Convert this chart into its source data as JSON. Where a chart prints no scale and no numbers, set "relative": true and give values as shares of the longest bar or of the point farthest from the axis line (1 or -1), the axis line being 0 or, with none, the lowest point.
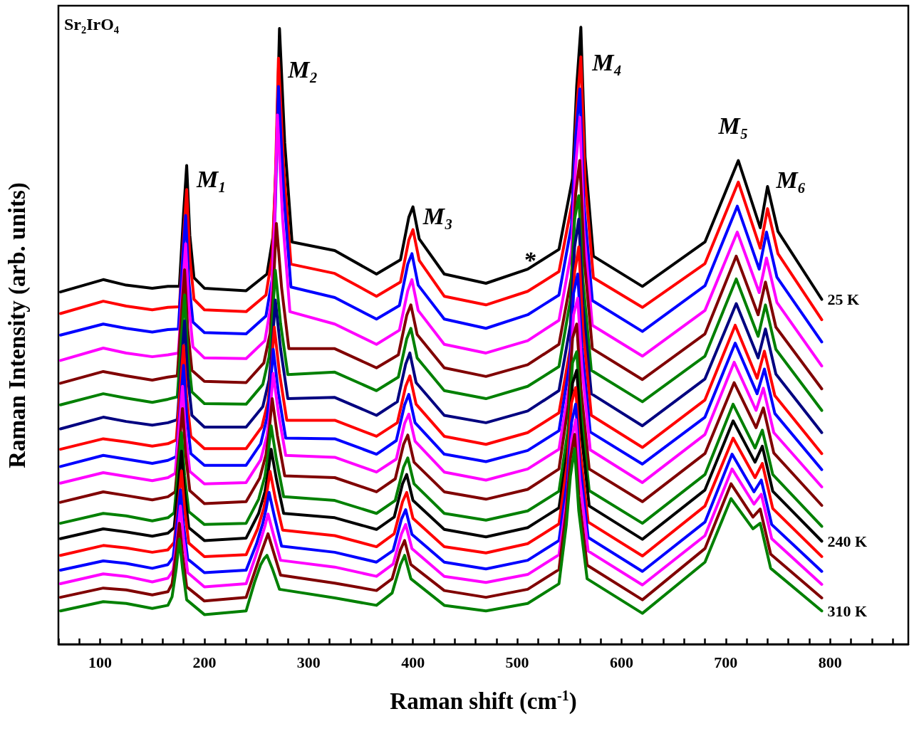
{
  "chart_data": {
    "type": "line",
    "relative": true,
    "marker": "none",
    "line_style": "solid",
    "grid": false,
    "xlabel": "Raman shift (cm$^{-1}$)",
    "ylabel": "Raman Intensity (arb. units)",
    "xlim": [
      60,
      875
    ],
    "xticks": [
      {
        "value": 60,
        "label": null
      },
      {
        "value": 80,
        "label": null
      },
      100,
      {
        "value": 120,
        "label": null
      },
      {
        "value": 140,
        "label": null
      },
      {
        "value": 160,
        "label": null
      },
      {
        "value": 180,
        "label": null
      },
      200,
      {
        "value": 220,
        "label": null
      },
      {
        "value": 240,
        "label": null
      },
      {
        "value": 260,
        "label": null
      },
      {
        "value": 280,
        "label": null
      },
      300,
      {
        "value": 320,
        "label": null
      },
      {
        "value": 340,
        "label": null
      },
      {
        "value": 360,
        "label": null
      },
      {
        "value": 380,
        "label": null
      },
      400,
      {
        "value": 420,
        "label": null
      },
      {
        "value": 440,
        "label": null
      },
      {
        "value": 460,
        "label": null
      },
      {
        "value": 480,
        "label": null
      },
      500,
      {
        "value": 520,
        "label": null
      },
      {
        "value": 540,
        "label": null
      },
      {
        "value": 560,
        "label": null
      },
      {
        "value": 580,
        "label": null
      },
      600,
      {
        "value": 620,
        "label": null
      },
      {
        "value": 640,
        "label": null
      },
      {
        "value": 660,
        "label": null
      },
      {
        "value": 680,
        "label": null
      },
      700,
      {
        "value": 720,
        "label": null
      },
      {
        "value": 740,
        "label": null
      },
      {
        "value": 760,
        "label": null
      },
      {
        "value": 780,
        "label": null
      },
      800,
      {
        "value": 820,
        "label": null
      },
      {
        "value": 840,
        "label": null
      },
      {
        "value": 860,
        "label": null
      }
    ],
    "annotations": [
      "Sr₂IrO₄",
      {
        "text": "M₁",
        "x": 183,
        "y": 0.776
      },
      {
        "text": "M₂",
        "x": 272,
        "y": 0.998
      },
      {
        "text": "M₃",
        "x": 400,
        "y": 0.709
      },
      {
        "text": "M₄",
        "x": 561,
        "y": 1.0
      },
      {
        "text": "M₅",
        "x": 712,
        "y": 0.784
      },
      {
        "text": "M₆",
        "x": 740,
        "y": 0.742
      },
      {
        "text": "*",
        "x": 510,
        "y": 0.608
      }
    ],
    "series": [
      {
        "name": "25 K",
        "color": "#000000",
        "x": [
          62,
          103,
          125,
          150,
          165,
          176,
          180,
          183,
          186,
          190,
          200,
          240,
          260,
          266,
          269,
          272,
          277,
          284,
          325,
          365,
          388,
          396,
          400,
          406,
          430,
          470,
          510,
          540,
          553,
          557,
          561,
          565,
          573,
          620,
          680,
          712,
          733,
          740,
          750,
          792
        ],
        "values": [
          0.571,
          0.591,
          0.582,
          0.577,
          0.58,
          0.58,
          0.698,
          0.776,
          0.663,
          0.594,
          0.577,
          0.573,
          0.6,
          0.663,
          0.79,
          0.998,
          0.813,
          0.652,
          0.638,
          0.6,
          0.623,
          0.692,
          0.709,
          0.657,
          0.6,
          0.585,
          0.608,
          0.64,
          0.755,
          0.905,
          1.0,
          0.79,
          0.629,
          0.58,
          0.652,
          0.784,
          0.675,
          0.742,
          0.669,
          0.559
        ]
      },
      {
        "color": "#ff0000",
        "x": [
          62,
          103,
          125,
          150,
          165,
          176,
          180,
          183,
          186,
          190,
          200,
          240,
          259,
          265,
          268,
          271,
          276,
          283,
          325,
          365,
          388,
          396,
          400,
          406,
          430,
          470,
          510,
          540,
          553,
          557,
          561,
          565,
          573,
          620,
          680,
          712,
          733,
          740,
          750,
          792
        ],
        "values": [
          0.536,
          0.556,
          0.548,
          0.542,
          0.546,
          0.547,
          0.66,
          0.737,
          0.627,
          0.559,
          0.542,
          0.539,
          0.566,
          0.629,
          0.751,
          0.95,
          0.773,
          0.616,
          0.601,
          0.564,
          0.587,
          0.655,
          0.672,
          0.622,
          0.564,
          0.55,
          0.572,
          0.604,
          0.719,
          0.865,
          0.952,
          0.752,
          0.594,
          0.546,
          0.617,
          0.749,
          0.642,
          0.706,
          0.633,
          0.526
        ]
      },
      {
        "color": "#0000ff",
        "x": [
          62,
          103,
          125,
          150,
          165,
          175,
          179,
          182,
          185,
          189,
          200,
          240,
          259,
          265,
          268,
          271,
          276,
          283,
          325,
          365,
          387,
          395,
          399,
          405,
          430,
          470,
          510,
          540,
          552,
          556,
          560,
          564,
          572,
          620,
          680,
          711,
          732,
          739,
          749,
          792
        ],
        "values": [
          0.501,
          0.519,
          0.512,
          0.506,
          0.51,
          0.511,
          0.621,
          0.695,
          0.589,
          0.522,
          0.505,
          0.503,
          0.532,
          0.592,
          0.71,
          0.904,
          0.731,
          0.579,
          0.562,
          0.527,
          0.549,
          0.616,
          0.633,
          0.582,
          0.527,
          0.512,
          0.534,
          0.566,
          0.679,
          0.821,
          0.9,
          0.713,
          0.557,
          0.507,
          0.581,
          0.71,
          0.608,
          0.668,
          0.595,
          0.49
        ]
      },
      {
        "color": "#ff00ff",
        "x": [
          62,
          103,
          125,
          150,
          165,
          175,
          179,
          182,
          185,
          189,
          200,
          240,
          258,
          264,
          267,
          270,
          275,
          282,
          325,
          365,
          387,
          395,
          399,
          405,
          430,
          470,
          510,
          540,
          552,
          556,
          560,
          564,
          572,
          620,
          680,
          711,
          732,
          739,
          749,
          792
        ],
        "values": [
          0.46,
          0.48,
          0.472,
          0.466,
          0.469,
          0.472,
          0.577,
          0.649,
          0.549,
          0.482,
          0.464,
          0.463,
          0.492,
          0.552,
          0.669,
          0.858,
          0.689,
          0.539,
          0.519,
          0.486,
          0.509,
          0.573,
          0.591,
          0.541,
          0.486,
          0.472,
          0.492,
          0.525,
          0.637,
          0.775,
          0.854,
          0.669,
          0.517,
          0.467,
          0.541,
          0.668,
          0.57,
          0.626,
          0.554,
          0.451
        ]
      },
      {
        "color": "#800000",
        "x": [
          62,
          103,
          125,
          150,
          165,
          174,
          178,
          181,
          184,
          188,
          200,
          240,
          257,
          263,
          266,
          269,
          274,
          281,
          325,
          365,
          386,
          394,
          398,
          404,
          430,
          470,
          510,
          540,
          552,
          556,
          560,
          564,
          572,
          620,
          680,
          710,
          731,
          738,
          748,
          792
        ],
        "values": [
          0.423,
          0.442,
          0.435,
          0.428,
          0.433,
          0.435,
          0.536,
          0.607,
          0.51,
          0.444,
          0.426,
          0.424,
          0.456,
          0.504,
          0.573,
          0.682,
          0.578,
          0.479,
          0.479,
          0.448,
          0.469,
          0.533,
          0.55,
          0.502,
          0.448,
          0.434,
          0.453,
          0.486,
          0.596,
          0.73,
          0.784,
          0.629,
          0.479,
          0.429,
          0.503,
          0.629,
          0.534,
          0.587,
          0.514,
          0.414
        ]
      },
      {
        "color": "#008000",
        "x": [
          62,
          103,
          125,
          150,
          165,
          174,
          178,
          181,
          184,
          188,
          200,
          240,
          256,
          262,
          265,
          268,
          273,
          280,
          325,
          365,
          386,
          394,
          398,
          404,
          430,
          470,
          510,
          540,
          551,
          555,
          559,
          563,
          571,
          620,
          680,
          710,
          731,
          738,
          748,
          792
        ],
        "values": [
          0.388,
          0.406,
          0.399,
          0.392,
          0.397,
          0.401,
          0.497,
          0.566,
          0.473,
          0.409,
          0.39,
          0.389,
          0.421,
          0.466,
          0.521,
          0.606,
          0.52,
          0.437,
          0.441,
          0.411,
          0.433,
          0.495,
          0.512,
          0.464,
          0.411,
          0.398,
          0.418,
          0.45,
          0.558,
          0.689,
          0.727,
          0.589,
          0.444,
          0.393,
          0.467,
          0.592,
          0.499,
          0.55,
          0.478,
          0.379
        ]
      },
      {
        "color": "#000080",
        "x": [
          62,
          103,
          125,
          150,
          165,
          174,
          178,
          181,
          184,
          188,
          200,
          240,
          256,
          262,
          265,
          268,
          273,
          280,
          325,
          365,
          385,
          393,
          397,
          403,
          430,
          470,
          510,
          540,
          551,
          555,
          559,
          563,
          571,
          620,
          680,
          710,
          731,
          738,
          748,
          792
        ],
        "values": [
          0.349,
          0.368,
          0.361,
          0.355,
          0.359,
          0.364,
          0.457,
          0.524,
          0.434,
          0.371,
          0.352,
          0.352,
          0.385,
          0.428,
          0.48,
          0.558,
          0.479,
          0.398,
          0.4,
          0.371,
          0.393,
          0.454,
          0.472,
          0.424,
          0.371,
          0.359,
          0.378,
          0.411,
          0.518,
          0.644,
          0.689,
          0.549,
          0.406,
          0.354,
          0.43,
          0.552,
          0.464,
          0.511,
          0.438,
          0.343
        ]
      },
      {
        "color": "#ff0000",
        "x": [
          62,
          103,
          125,
          150,
          165,
          173,
          177,
          180,
          183,
          187,
          200,
          240,
          255,
          261,
          264,
          267,
          272,
          279,
          325,
          365,
          385,
          393,
          397,
          403,
          430,
          470,
          510,
          540,
          551,
          555,
          559,
          563,
          571,
          620,
          680,
          709,
          730,
          737,
          747,
          792
        ],
        "values": [
          0.316,
          0.333,
          0.328,
          0.321,
          0.325,
          0.331,
          0.419,
          0.484,
          0.399,
          0.337,
          0.317,
          0.317,
          0.352,
          0.393,
          0.442,
          0.514,
          0.439,
          0.363,
          0.363,
          0.337,
          0.359,
          0.418,
          0.435,
          0.389,
          0.337,
          0.324,
          0.343,
          0.375,
          0.481,
          0.603,
          0.644,
          0.511,
          0.371,
          0.319,
          0.396,
          0.517,
          0.431,
          0.475,
          0.403,
          0.309
        ]
      },
      {
        "color": "#0000ff",
        "x": [
          62,
          103,
          125,
          150,
          165,
          173,
          177,
          180,
          183,
          187,
          200,
          240,
          254,
          260,
          263,
          266,
          271,
          278,
          325,
          365,
          384,
          392,
          396,
          402,
          430,
          470,
          510,
          540,
          550,
          554,
          558,
          562,
          570,
          620,
          680,
          709,
          730,
          737,
          747,
          792
        ],
        "values": [
          0.288,
          0.306,
          0.3,
          0.293,
          0.298,
          0.304,
          0.389,
          0.452,
          0.37,
          0.309,
          0.29,
          0.29,
          0.325,
          0.367,
          0.411,
          0.478,
          0.407,
          0.334,
          0.333,
          0.308,
          0.33,
          0.388,
          0.405,
          0.359,
          0.308,
          0.296,
          0.314,
          0.346,
          0.451,
          0.569,
          0.6,
          0.481,
          0.344,
          0.292,
          0.368,
          0.488,
          0.406,
          0.446,
          0.374,
          0.283
        ]
      },
      {
        "color": "#ff00ff",
        "x": [
          62,
          103,
          125,
          150,
          165,
          172,
          176,
          179,
          182,
          186,
          200,
          240,
          254,
          260,
          263,
          266,
          271,
          278,
          325,
          365,
          384,
          392,
          396,
          402,
          430,
          470,
          510,
          540,
          550,
          554,
          558,
          562,
          570,
          620,
          680,
          708,
          729,
          736,
          746,
          792
        ],
        "values": [
          0.261,
          0.278,
          0.272,
          0.265,
          0.27,
          0.277,
          0.356,
          0.418,
          0.34,
          0.28,
          0.26,
          0.262,
          0.299,
          0.338,
          0.378,
          0.439,
          0.374,
          0.306,
          0.303,
          0.279,
          0.3,
          0.358,
          0.373,
          0.329,
          0.279,
          0.266,
          0.284,
          0.316,
          0.421,
          0.534,
          0.561,
          0.449,
          0.315,
          0.262,
          0.34,
          0.457,
          0.379,
          0.415,
          0.343,
          0.255
        ]
      },
      {
        "color": "#800000",
        "x": [
          62,
          103,
          125,
          150,
          165,
          172,
          176,
          179,
          182,
          186,
          200,
          240,
          253,
          259,
          262,
          265,
          270,
          277,
          325,
          365,
          383,
          391,
          395,
          401,
          430,
          470,
          510,
          540,
          549,
          553,
          557,
          561,
          569,
          620,
          680,
          708,
          729,
          736,
          746,
          792
        ],
        "values": [
          0.23,
          0.247,
          0.241,
          0.234,
          0.239,
          0.247,
          0.323,
          0.382,
          0.308,
          0.249,
          0.228,
          0.231,
          0.269,
          0.307,
          0.344,
          0.398,
          0.338,
          0.273,
          0.27,
          0.247,
          0.268,
          0.324,
          0.339,
          0.295,
          0.247,
          0.235,
          0.251,
          0.284,
          0.388,
          0.496,
          0.519,
          0.415,
          0.284,
          0.231,
          0.309,
          0.424,
          0.351,
          0.383,
          0.31,
          0.225
        ]
      },
      {
        "color": "#008000",
        "x": [
          62,
          103,
          125,
          150,
          165,
          171,
          175,
          178,
          181,
          185,
          200,
          240,
          252,
          258,
          261,
          264,
          269,
          276,
          325,
          365,
          383,
          391,
          395,
          401,
          430,
          470,
          510,
          540,
          549,
          553,
          557,
          561,
          569,
          620,
          680,
          707,
          728,
          735,
          745,
          792
        ],
        "values": [
          0.196,
          0.212,
          0.208,
          0.2,
          0.205,
          0.213,
          0.285,
          0.343,
          0.273,
          0.215,
          0.194,
          0.196,
          0.235,
          0.272,
          0.307,
          0.354,
          0.3,
          0.239,
          0.233,
          0.212,
          0.233,
          0.287,
          0.302,
          0.26,
          0.212,
          0.201,
          0.216,
          0.248,
          0.351,
          0.456,
          0.474,
          0.377,
          0.249,
          0.196,
          0.275,
          0.389,
          0.318,
          0.347,
          0.275,
          0.191
        ]
      },
      {
        "name": "240 K",
        "color": "#000000",
        "x": [
          62,
          103,
          125,
          150,
          165,
          171,
          175,
          178,
          181,
          185,
          200,
          240,
          252,
          258,
          261,
          264,
          269,
          276,
          325,
          365,
          382,
          390,
          394,
          400,
          430,
          470,
          510,
          540,
          549,
          553,
          557,
          561,
          569,
          620,
          680,
          707,
          728,
          735,
          745,
          792
        ],
        "values": [
          0.171,
          0.187,
          0.182,
          0.175,
          0.18,
          0.189,
          0.257,
          0.313,
          0.247,
          0.189,
          0.168,
          0.172,
          0.212,
          0.247,
          0.277,
          0.316,
          0.268,
          0.212,
          0.205,
          0.186,
          0.206,
          0.26,
          0.275,
          0.233,
          0.186,
          0.174,
          0.189,
          0.221,
          0.323,
          0.423,
          0.444,
          0.349,
          0.224,
          0.17,
          0.25,
          0.362,
          0.295,
          0.321,
          0.248,
          0.167
        ]
      },
      {
        "color": "#ff0000",
        "x": [
          62,
          103,
          125,
          150,
          165,
          171,
          175,
          178,
          181,
          185,
          200,
          240,
          251,
          257,
          260,
          263,
          268,
          275,
          325,
          365,
          382,
          390,
          394,
          400,
          430,
          470,
          510,
          540,
          548,
          552,
          556,
          560,
          568,
          620,
          680,
          707,
          728,
          735,
          745,
          792
        ],
        "values": [
          0.144,
          0.16,
          0.156,
          0.149,
          0.153,
          0.165,
          0.227,
          0.281,
          0.219,
          0.164,
          0.142,
          0.145,
          0.187,
          0.221,
          0.247,
          0.28,
          0.236,
          0.185,
          0.176,
          0.158,
          0.179,
          0.231,
          0.246,
          0.204,
          0.158,
          0.148,
          0.163,
          0.195,
          0.294,
          0.391,
          0.416,
          0.319,
          0.198,
          0.143,
          0.224,
          0.334,
          0.27,
          0.293,
          0.22,
          0.142
        ]
      },
      {
        "color": "#0000ff",
        "x": [
          62,
          103,
          125,
          150,
          165,
          170,
          174,
          177,
          180,
          184,
          200,
          240,
          250,
          256,
          259,
          262,
          267,
          274,
          325,
          365,
          381,
          389,
          393,
          399,
          430,
          470,
          510,
          540,
          548,
          552,
          556,
          560,
          568,
          620,
          680,
          706,
          727,
          734,
          744,
          792
        ],
        "values": [
          0.12,
          0.135,
          0.131,
          0.123,
          0.129,
          0.141,
          0.2,
          0.25,
          0.193,
          0.138,
          0.116,
          0.12,
          0.163,
          0.196,
          0.218,
          0.246,
          0.208,
          0.159,
          0.149,
          0.133,
          0.152,
          0.203,
          0.218,
          0.178,
          0.133,
          0.122,
          0.136,
          0.168,
          0.266,
          0.359,
          0.389,
          0.292,
          0.173,
          0.118,
          0.198,
          0.308,
          0.247,
          0.266,
          0.194,
          0.118
        ]
      },
      {
        "color": "#ff00ff",
        "x": [
          62,
          103,
          125,
          150,
          165,
          170,
          174,
          177,
          180,
          184,
          200,
          240,
          249,
          255,
          258,
          261,
          266,
          273,
          325,
          365,
          381,
          389,
          393,
          399,
          430,
          470,
          510,
          540,
          548,
          552,
          556,
          560,
          568,
          620,
          680,
          706,
          727,
          734,
          744,
          792
        ],
        "values": [
          0.098,
          0.114,
          0.11,
          0.101,
          0.107,
          0.12,
          0.174,
          0.224,
          0.171,
          0.116,
          0.093,
          0.098,
          0.142,
          0.174,
          0.191,
          0.211,
          0.179,
          0.136,
          0.125,
          0.11,
          0.13,
          0.179,
          0.194,
          0.155,
          0.11,
          0.1,
          0.113,
          0.145,
          0.242,
          0.331,
          0.364,
          0.266,
          0.151,
          0.096,
          0.176,
          0.284,
          0.227,
          0.243,
          0.171,
          0.097
        ]
      },
      {
        "color": "#800000",
        "x": [
          62,
          103,
          125,
          150,
          165,
          169,
          173,
          176,
          179,
          183,
          200,
          240,
          249,
          255,
          258,
          261,
          266,
          273,
          325,
          365,
          380,
          388,
          392,
          398,
          430,
          470,
          510,
          540,
          547,
          551,
          555,
          559,
          567,
          620,
          680,
          705,
          726,
          733,
          743,
          792
        ],
        "values": [
          0.076,
          0.091,
          0.088,
          0.08,
          0.085,
          0.098,
          0.149,
          0.196,
          0.146,
          0.093,
          0.07,
          0.076,
          0.121,
          0.151,
          0.165,
          0.179,
          0.151,
          0.112,
          0.099,
          0.087,
          0.106,
          0.153,
          0.168,
          0.129,
          0.087,
          0.076,
          0.089,
          0.121,
          0.217,
          0.301,
          0.34,
          0.241,
          0.128,
          0.072,
          0.155,
          0.26,
          0.206,
          0.219,
          0.146,
          0.075
        ]
      },
      {
        "name": "310 K",
        "color": "#008000",
        "x": [
          62,
          103,
          125,
          150,
          165,
          169,
          173,
          176,
          179,
          183,
          200,
          240,
          248,
          254,
          257,
          260,
          265,
          272,
          325,
          365,
          380,
          388,
          392,
          398,
          430,
          470,
          510,
          540,
          547,
          551,
          555,
          559,
          567,
          620,
          680,
          705,
          726,
          733,
          743,
          792
        ],
        "values": [
          0.054,
          0.069,
          0.066,
          0.058,
          0.063,
          0.077,
          0.123,
          0.17,
          0.123,
          0.072,
          0.048,
          0.054,
          0.1,
          0.129,
          0.138,
          0.144,
          0.123,
          0.089,
          0.075,
          0.063,
          0.083,
          0.129,
          0.144,
          0.106,
          0.063,
          0.054,
          0.066,
          0.098,
          0.193,
          0.273,
          0.317,
          0.216,
          0.106,
          0.05,
          0.133,
          0.236,
          0.187,
          0.196,
          0.123,
          0.054
        ]
      }
    ]
  }
}
